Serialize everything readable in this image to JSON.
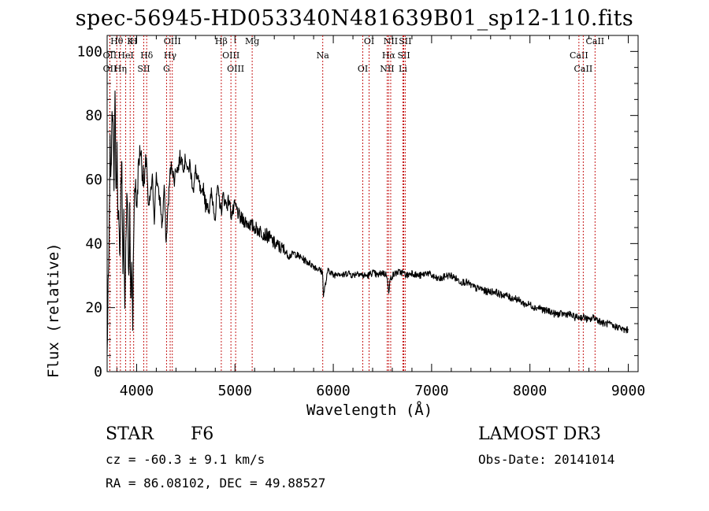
{
  "chart_data": {
    "type": "line",
    "title": "spec-56945-HD053340N481639B01_sp12-110.fits",
    "xlabel": "Wavelength (Å)",
    "ylabel": "Flux (relative)",
    "xlim": [
      3700,
      9100
    ],
    "ylim": [
      0,
      105
    ],
    "xticks": [
      4000,
      5000,
      6000,
      7000,
      8000,
      9000
    ],
    "yticks": [
      0,
      20,
      40,
      60,
      80,
      100
    ],
    "xtick_labels": [
      "4000",
      "5000",
      "6000",
      "7000",
      "8000",
      "9000"
    ],
    "ytick_labels": [
      "0",
      "20",
      "40",
      "60",
      "80",
      "100"
    ],
    "series": [
      {
        "name": "flux",
        "x": [
          3700,
          3710,
          3720,
          3730,
          3740,
          3750,
          3760,
          3770,
          3780,
          3790,
          3800,
          3810,
          3820,
          3830,
          3840,
          3850,
          3860,
          3870,
          3880,
          3890,
          3900,
          3910,
          3920,
          3930,
          3940,
          3950,
          3960,
          3970,
          3980,
          3990,
          4000,
          4020,
          4040,
          4060,
          4080,
          4100,
          4120,
          4140,
          4160,
          4180,
          4200,
          4220,
          4240,
          4260,
          4280,
          4300,
          4320,
          4340,
          4360,
          4380,
          4400,
          4420,
          4440,
          4460,
          4480,
          4500,
          4520,
          4540,
          4560,
          4580,
          4600,
          4620,
          4640,
          4660,
          4680,
          4700,
          4720,
          4740,
          4760,
          4780,
          4800,
          4820,
          4840,
          4860,
          4880,
          4900,
          4920,
          4940,
          4960,
          4980,
          5000,
          5050,
          5100,
          5150,
          5200,
          5250,
          5300,
          5350,
          5400,
          5450,
          5500,
          5550,
          5600,
          5650,
          5700,
          5750,
          5800,
          5850,
          5890,
          5900,
          5950,
          6000,
          6050,
          6100,
          6150,
          6200,
          6250,
          6300,
          6350,
          6400,
          6450,
          6500,
          6550,
          6563,
          6580,
          6600,
          6650,
          6700,
          6750,
          6800,
          6850,
          6900,
          6950,
          7000,
          7050,
          7100,
          7150,
          7200,
          7250,
          7300,
          7350,
          7400,
          7450,
          7500,
          7550,
          7600,
          7650,
          7700,
          7750,
          7800,
          7850,
          7900,
          7950,
          8000,
          8050,
          8100,
          8150,
          8200,
          8250,
          8300,
          8350,
          8400,
          8450,
          8500,
          8550,
          8600,
          8650,
          8700,
          8750,
          8800,
          8850,
          8900,
          8950,
          9000
        ],
        "y": [
          5,
          25,
          38,
          70,
          60,
          85,
          75,
          60,
          90,
          55,
          70,
          45,
          50,
          35,
          58,
          65,
          30,
          48,
          18,
          40,
          55,
          52,
          28,
          50,
          20,
          35,
          15,
          45,
          55,
          60,
          50,
          65,
          70,
          62,
          58,
          68,
          50,
          55,
          60,
          48,
          62,
          56,
          53,
          45,
          58,
          40,
          52,
          62,
          65,
          59,
          64,
          63,
          67,
          66,
          64,
          67,
          62,
          65,
          60,
          57,
          63,
          60,
          58,
          54,
          58,
          52,
          53,
          50,
          56,
          52,
          48,
          57,
          54,
          50,
          55,
          53,
          52,
          54,
          49,
          50,
          52,
          48,
          47,
          46,
          45,
          44,
          43,
          42,
          40,
          39,
          38,
          36,
          37,
          36,
          35,
          34,
          33,
          32,
          31,
          24,
          32,
          30,
          31,
          30,
          31,
          30,
          31,
          30,
          30,
          31,
          30,
          31,
          30,
          24,
          29,
          30,
          31,
          31,
          30,
          31,
          30,
          30,
          31,
          30,
          29,
          29,
          30,
          30,
          29,
          28,
          28,
          27,
          26,
          26,
          25,
          25,
          25,
          24,
          24,
          23,
          23,
          22,
          21,
          21,
          20,
          20,
          19,
          19,
          18,
          18,
          18,
          18,
          17,
          17,
          17,
          16,
          17,
          16,
          15,
          15,
          14,
          14,
          13,
          13
        ]
      }
    ],
    "annotations": {
      "lines": [
        {
          "label": "Hθ",
          "x": 3798
        },
        {
          "label": "OII",
          "x": 3727
        },
        {
          "label": "OII",
          "x": 3728
        },
        {
          "label": "K",
          "x": 3934
        },
        {
          "label": "HeI",
          "x": 3889
        },
        {
          "label": "Hη",
          "x": 3835
        },
        {
          "label": "H",
          "x": 3970
        },
        {
          "label": "Hδ",
          "x": 4102
        },
        {
          "label": "SII",
          "x": 4072
        },
        {
          "label": "OIII",
          "x": 4363
        },
        {
          "label": "Hγ",
          "x": 4341
        },
        {
          "label": "G",
          "x": 4304
        },
        {
          "label": "Hβ",
          "x": 4861
        },
        {
          "label": "OIII",
          "x": 4959
        },
        {
          "label": "OIII",
          "x": 5007
        },
        {
          "label": "Mg",
          "x": 5175
        },
        {
          "label": "Na",
          "x": 5893
        },
        {
          "label": "OI",
          "x": 6300
        },
        {
          "label": "OI",
          "x": 6364
        },
        {
          "label": "Hα",
          "x": 6563
        },
        {
          "label": "NII",
          "x": 6548
        },
        {
          "label": "NII",
          "x": 6584
        },
        {
          "label": "SII",
          "x": 6717
        },
        {
          "label": "Li",
          "x": 6708
        },
        {
          "label": "SII",
          "x": 6731
        },
        {
          "label": "CaII",
          "x": 8498
        },
        {
          "label": "CaII",
          "x": 8542
        },
        {
          "label": "CaII",
          "x": 8662
        }
      ]
    }
  },
  "info": {
    "class_label": "STAR",
    "subclass": "F6",
    "survey": "LAMOST DR3",
    "cz_line": "cz = -60.3 ± 9.1 km/s",
    "obs_date": "Obs-Date: 20141014",
    "coords": "RA =  86.08102, DEC =  49.88527"
  }
}
